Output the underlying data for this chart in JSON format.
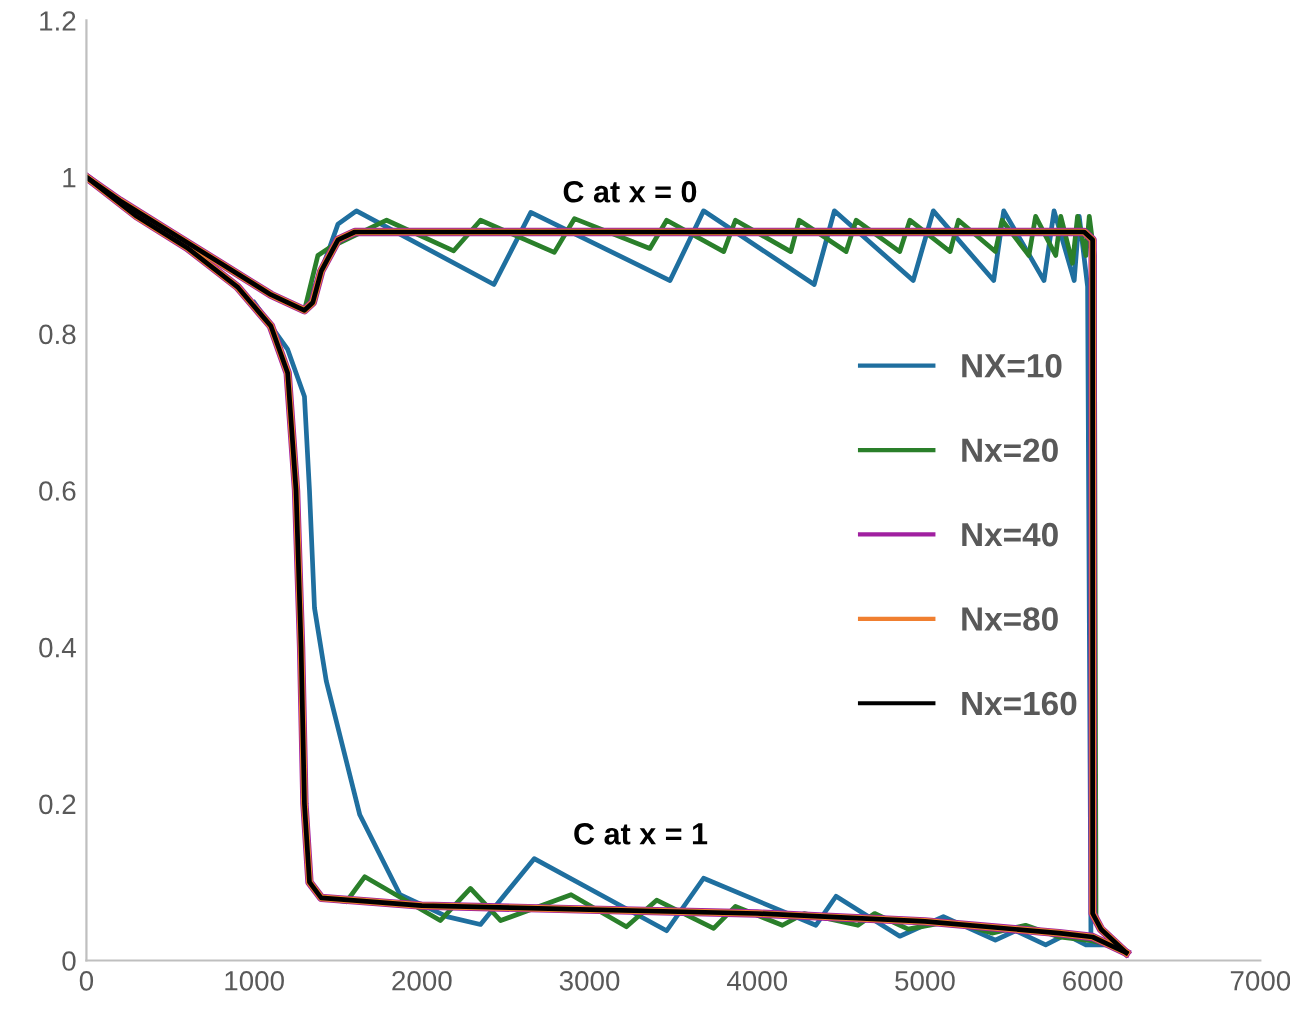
{
  "chart_data": {
    "type": "line",
    "xlim": [
      0,
      7000
    ],
    "ylim": [
      0,
      1.2
    ],
    "xticks": [
      0,
      1000,
      2000,
      3000,
      4000,
      5000,
      6000,
      7000
    ],
    "yticks": [
      0,
      0.2,
      0.4,
      0.6,
      0.8,
      1,
      1.2
    ],
    "grid": false,
    "legend": "right",
    "marker": "none",
    "line_style": "solid",
    "annotations": [
      "C at x = 0",
      "C at x = 1"
    ],
    "series": [
      {
        "name": "NX=10",
        "color": "#1f6f9f",
        "x": [
          1300,
          1400,
          1500,
          1610,
          2430,
          2650,
          3480,
          3680,
          4340,
          4460,
          4930,
          5050,
          5410,
          5470,
          5710,
          5770,
          5890,
          5920,
          5970,
          5990,
          6100,
          6200
        ],
        "values": [
          0.83,
          0.88,
          0.94,
          0.957,
          0.863,
          0.955,
          0.868,
          0.957,
          0.863,
          0.957,
          0.868,
          0.957,
          0.868,
          0.957,
          0.868,
          0.957,
          0.868,
          0.95,
          0.86,
          0.03,
          0.02,
          0.01
        ]
      },
      {
        "color": "#1f6f9f",
        "x": [
          1000,
          1200,
          1300,
          1330,
          1360,
          1430,
          1630,
          1870,
          2150,
          2350,
          2670,
          3460,
          3680,
          4350,
          4470,
          4850,
          5110,
          5420,
          5540,
          5720,
          5840,
          5960,
          6100,
          6200
        ],
        "values": [
          0.84,
          0.78,
          0.72,
          0.6,
          0.45,
          0.357,
          0.186,
          0.084,
          0.056,
          0.046,
          0.13,
          0.038,
          0.105,
          0.045,
          0.082,
          0.031,
          0.056,
          0.026,
          0.038,
          0.02,
          0.033,
          0.02,
          0.02,
          0.01
        ]
      },
      {
        "name": "Nx=20",
        "color": "#2a7f2a",
        "x": [
          1300,
          1380,
          1450,
          1790,
          2190,
          2350,
          2790,
          2910,
          3360,
          3460,
          3800,
          3870,
          4200,
          4250,
          4530,
          4590,
          4850,
          4910,
          5150,
          5200,
          5420,
          5460,
          5620,
          5660,
          5780,
          5810,
          5880,
          5910,
          5960,
          5980,
          6010,
          6020
        ],
        "values": [
          0.83,
          0.9,
          0.91,
          0.945,
          0.906,
          0.945,
          0.904,
          0.947,
          0.909,
          0.945,
          0.905,
          0.945,
          0.905,
          0.945,
          0.905,
          0.945,
          0.905,
          0.945,
          0.905,
          0.945,
          0.905,
          0.945,
          0.9,
          0.95,
          0.9,
          0.95,
          0.89,
          0.95,
          0.9,
          0.95,
          0.9,
          0.05
        ]
      },
      {
        "color": "#2a7f2a",
        "x": [
          1400,
          1550,
          1660,
          2110,
          2290,
          2470,
          2890,
          3220,
          3400,
          3740,
          3870,
          4150,
          4280,
          4600,
          4700,
          4900,
          5150,
          5400,
          5600,
          5800,
          6000,
          6100,
          6200
        ],
        "values": [
          0.08,
          0.075,
          0.107,
          0.051,
          0.092,
          0.051,
          0.084,
          0.043,
          0.077,
          0.041,
          0.069,
          0.045,
          0.06,
          0.045,
          0.06,
          0.04,
          0.05,
          0.035,
          0.045,
          0.03,
          0.025,
          0.02,
          0.01
        ]
      },
      {
        "name": "Nx=40",
        "color": "#a020a0",
        "x": [
          0,
          200,
          500,
          800,
          1100,
          1300,
          1350,
          1400,
          1500,
          1600,
          2000,
          5950,
          6000,
          6000,
          6050,
          6200
        ],
        "values": [
          1.0,
          0.97,
          0.93,
          0.89,
          0.85,
          0.83,
          0.84,
          0.88,
          0.92,
          0.93,
          0.93,
          0.93,
          0.92,
          0.06,
          0.04,
          0.01
        ]
      },
      {
        "color": "#a020a0",
        "x": [
          0,
          300,
          600,
          900,
          1100,
          1200,
          1250,
          1280,
          1300,
          1330,
          1400,
          2000,
          3000,
          4000,
          5000,
          5800,
          6000,
          6100,
          6200
        ],
        "values": [
          1.0,
          0.95,
          0.91,
          0.86,
          0.81,
          0.75,
          0.6,
          0.4,
          0.2,
          0.1,
          0.08,
          0.07,
          0.065,
          0.06,
          0.05,
          0.035,
          0.03,
          0.02,
          0.01
        ]
      },
      {
        "name": "Nx=80",
        "color": "#f07f30",
        "x": [
          0,
          200,
          500,
          800,
          1100,
          1300,
          1350,
          1400,
          1500,
          1600,
          2000,
          5950,
          6000,
          6000,
          6050,
          6200
        ],
        "values": [
          1.0,
          0.97,
          0.93,
          0.89,
          0.85,
          0.83,
          0.84,
          0.88,
          0.92,
          0.93,
          0.93,
          0.93,
          0.92,
          0.06,
          0.04,
          0.01
        ]
      },
      {
        "color": "#f07f30",
        "x": [
          0,
          300,
          600,
          900,
          1100,
          1200,
          1250,
          1280,
          1300,
          1330,
          1400,
          2000,
          3000,
          4000,
          5000,
          5800,
          6000,
          6100,
          6200
        ],
        "values": [
          1.0,
          0.95,
          0.91,
          0.86,
          0.81,
          0.75,
          0.6,
          0.4,
          0.2,
          0.1,
          0.08,
          0.07,
          0.065,
          0.06,
          0.05,
          0.035,
          0.03,
          0.02,
          0.01
        ]
      },
      {
        "name": "Nx=160",
        "color": "#000000",
        "x": [
          0,
          200,
          500,
          800,
          1100,
          1300,
          1350,
          1400,
          1500,
          1600,
          2000,
          5950,
          6000,
          6000,
          6050,
          6200
        ],
        "values": [
          1.0,
          0.97,
          0.93,
          0.89,
          0.85,
          0.83,
          0.84,
          0.88,
          0.92,
          0.93,
          0.93,
          0.93,
          0.92,
          0.06,
          0.04,
          0.01
        ]
      },
      {
        "color": "#000000",
        "x": [
          0,
          300,
          600,
          900,
          1100,
          1200,
          1250,
          1280,
          1300,
          1330,
          1400,
          2000,
          3000,
          4000,
          5000,
          5800,
          6000,
          6100,
          6200
        ],
        "values": [
          1.0,
          0.95,
          0.91,
          0.86,
          0.81,
          0.75,
          0.6,
          0.4,
          0.2,
          0.1,
          0.08,
          0.07,
          0.065,
          0.06,
          0.05,
          0.035,
          0.03,
          0.02,
          0.01
        ]
      }
    ]
  }
}
